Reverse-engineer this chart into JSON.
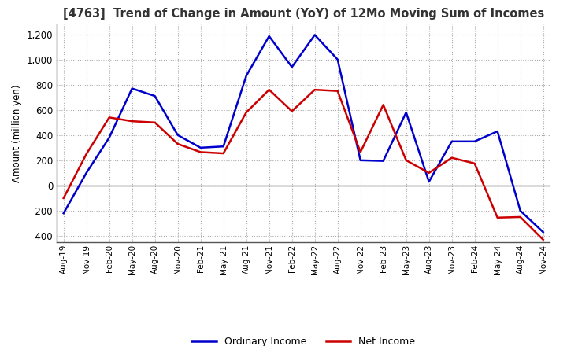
{
  "title": "[4763]  Trend of Change in Amount (YoY) of 12Mo Moving Sum of Incomes",
  "ylabel": "Amount (million yen)",
  "ylim": [
    -450,
    1280
  ],
  "yticks": [
    -400,
    -200,
    0,
    200,
    400,
    600,
    800,
    1000,
    1200
  ],
  "background_color": "#ffffff",
  "grid_color": "#aaaaaa",
  "ordinary_income_color": "#0000cc",
  "net_income_color": "#cc0000",
  "x_labels": [
    "Aug-19",
    "Nov-19",
    "Feb-20",
    "May-20",
    "Aug-20",
    "Nov-20",
    "Feb-21",
    "May-21",
    "Aug-21",
    "Nov-21",
    "Feb-22",
    "May-22",
    "Aug-22",
    "Nov-22",
    "Feb-23",
    "May-23",
    "Aug-23",
    "Nov-23",
    "Feb-24",
    "May-24",
    "Aug-24",
    "Nov-24"
  ],
  "ordinary_income": [
    -220,
    100,
    380,
    770,
    710,
    400,
    300,
    310,
    870,
    1185,
    940,
    1195,
    1000,
    200,
    195,
    580,
    30,
    350,
    350,
    430,
    -200,
    -370
  ],
  "net_income": [
    -100,
    250,
    540,
    510,
    500,
    330,
    265,
    255,
    580,
    760,
    590,
    760,
    750,
    265,
    640,
    200,
    100,
    220,
    175,
    -255,
    -250,
    -430
  ],
  "line_width": 1.8
}
